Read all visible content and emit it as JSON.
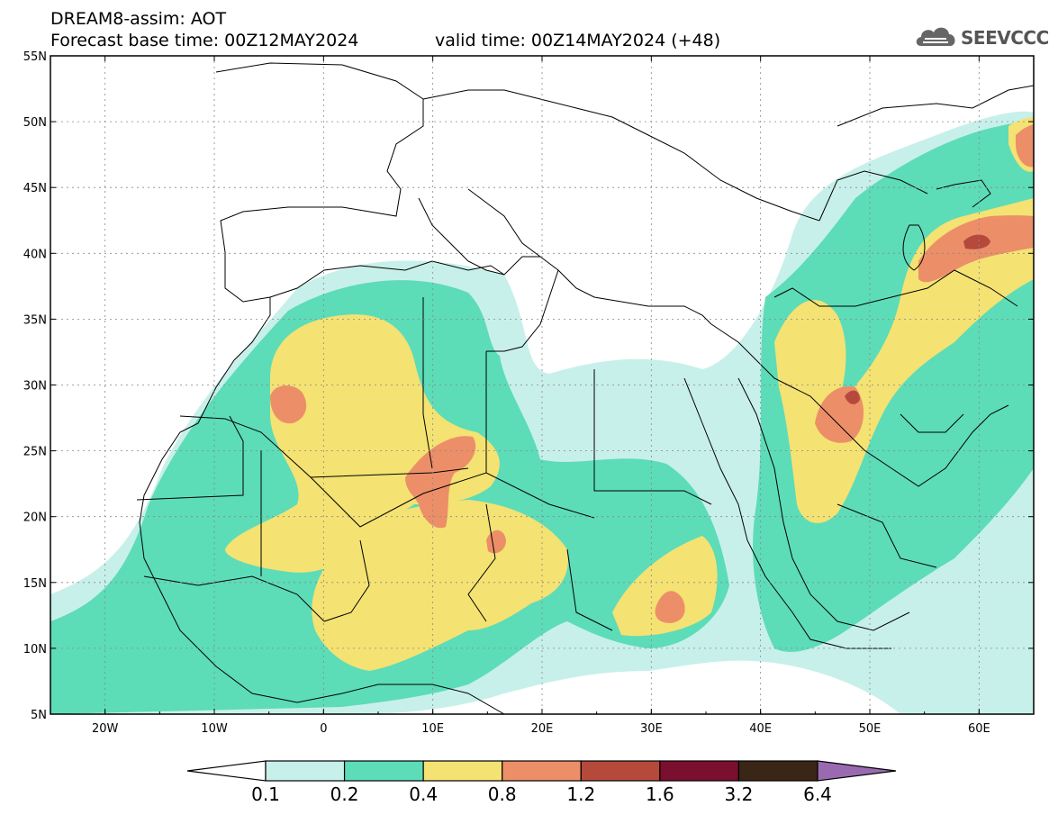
{
  "header": {
    "line1": "DREAM8-assim: AOT",
    "line2": "Forecast base time: 00Z12MAY2024",
    "line3": "valid time: 00Z14MAY2024 (+48)"
  },
  "logo": {
    "text": "SEEVCCC",
    "icon": "cloud-icon"
  },
  "map": {
    "lat_labels": [
      "55N",
      "50N",
      "45N",
      "40N",
      "35N",
      "30N",
      "25N",
      "20N",
      "15N",
      "10N",
      "5N"
    ],
    "lon_labels": [
      "20W",
      "10W",
      "0",
      "10E",
      "20E",
      "30E",
      "40E",
      "50E",
      "60E"
    ]
  },
  "colorbar": {
    "colors": [
      "#c8f0ea",
      "#5ddcb8",
      "#f4e273",
      "#ec8f68",
      "#b4493c",
      "#7a0f30",
      "#3a2616"
    ],
    "under_color": "#ffffff",
    "over_color": "#9a6ab0",
    "labels": [
      "0.1",
      "0.2",
      "0.4",
      "0.8",
      "1.2",
      "1.6",
      "3.2",
      "6.4"
    ]
  }
}
